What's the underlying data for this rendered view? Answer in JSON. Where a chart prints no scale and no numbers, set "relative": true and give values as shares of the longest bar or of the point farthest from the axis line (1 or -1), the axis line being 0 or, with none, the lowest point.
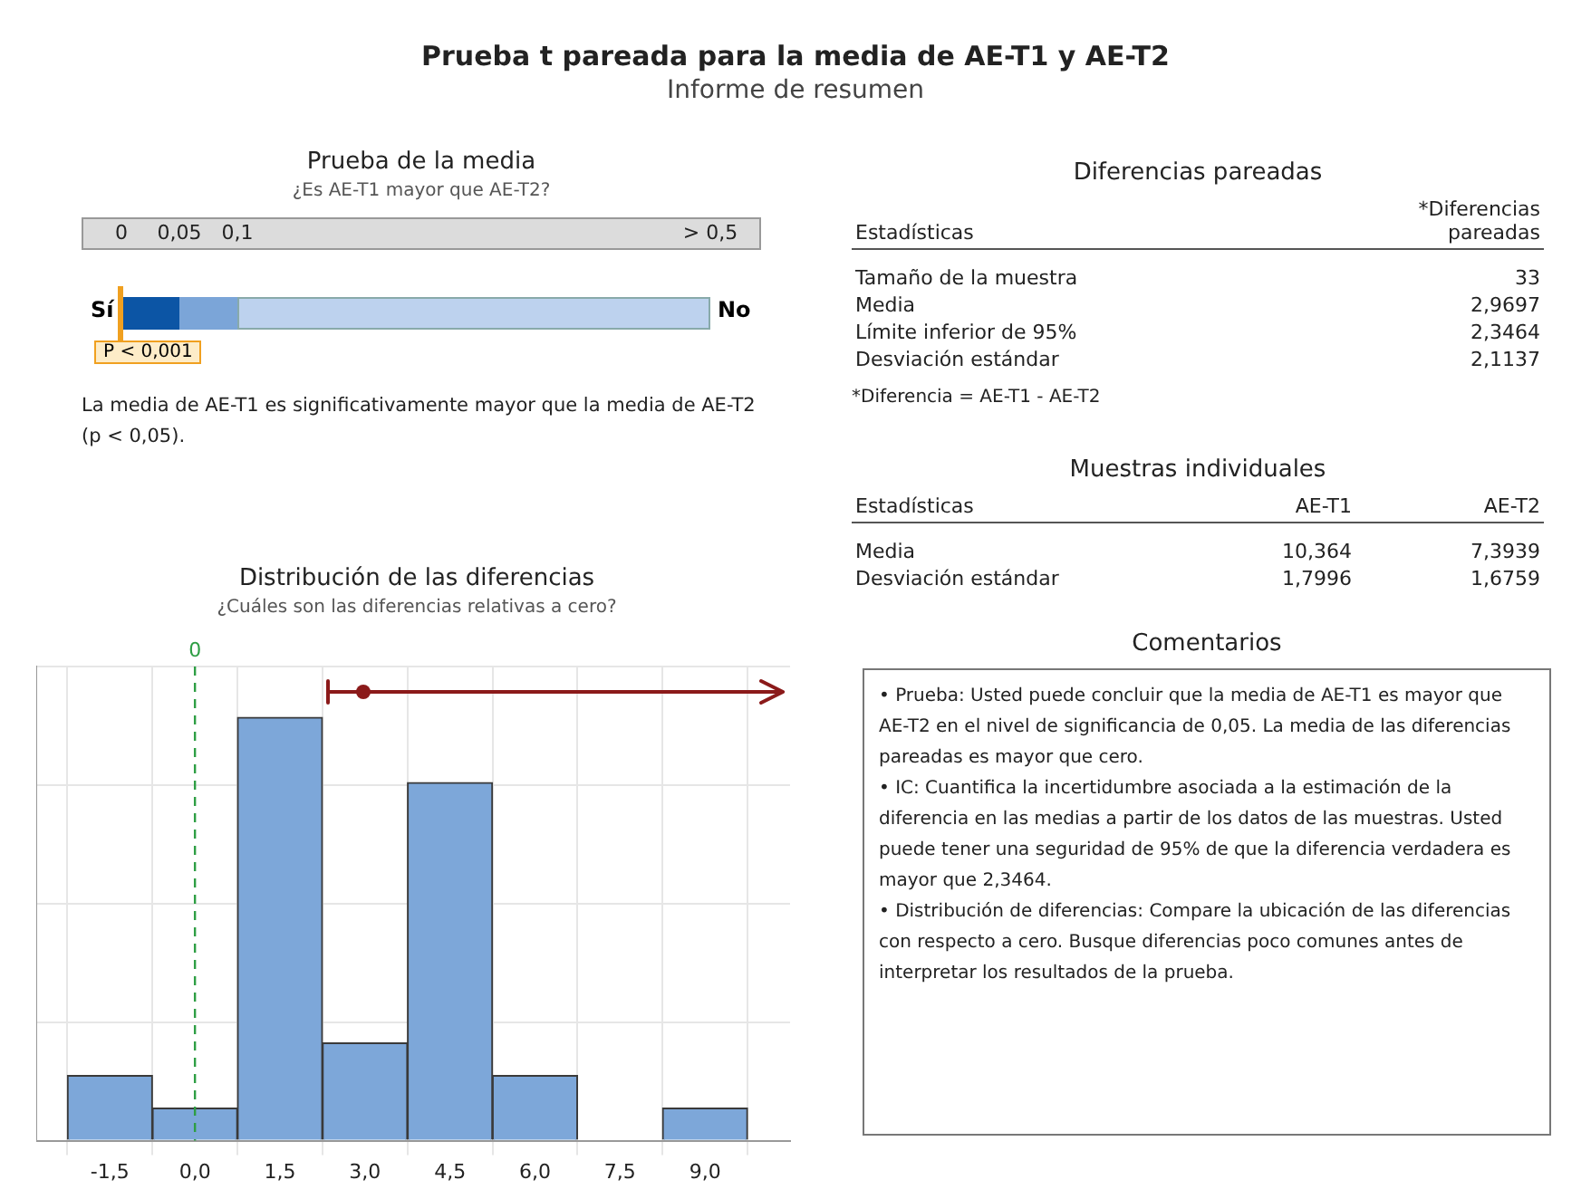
{
  "chart_data": [
    {
      "type": "other",
      "title": "Prueba t pareada para la media de AE-T1 y AE-T2",
      "subtitle": "Informe de resumen"
    },
    {
      "type": "other",
      "title": "Prueba de la media",
      "subtitle": "¿Es AE-T1 mayor que AE-T2?",
      "categories": [
        "0",
        "0,05",
        "0,1",
        "> 0,5"
      ],
      "annotations": [
        "Sí",
        "No",
        "P < 0,001",
        "La media de AE-T1 es significativamente mayor que la media de AE-T2 (p < 0,05)."
      ]
    },
    {
      "type": "bar",
      "title": "Distribución de las diferencias",
      "subtitle": "¿Cuáles son las diferencias relativas a cero?",
      "relative": true,
      "x": [
        -1.5,
        0,
        1.5,
        3,
        4.5,
        6,
        7.5,
        9
      ],
      "values": [
        0.154,
        0.077,
        1,
        0.231,
        0.846,
        0.154,
        0,
        0.077
      ],
      "color": "#7da7d9",
      "xlim": [
        -2.8,
        10.5
      ],
      "xticks": [
        {
          "value": -1.5,
          "label": "-1,5"
        },
        {
          "value": 0,
          "label": "0,0"
        },
        {
          "value": 1.5,
          "label": "1,5"
        },
        {
          "value": 3,
          "label": "3,0"
        },
        {
          "value": 4.5,
          "label": "4,5"
        },
        {
          "value": 6,
          "label": "6,0"
        },
        {
          "value": 7.5,
          "label": "7,5"
        },
        {
          "value": 9,
          "label": "9,0"
        }
      ],
      "ref_lines": [
        {
          "axis": "x",
          "value": 0,
          "label": "0",
          "color": "#2e9e44",
          "line_style": "dashed"
        }
      ],
      "grid": true,
      "legend": false
    },
    {
      "type": "other",
      "title": "Diferencias pareadas",
      "categories": [
        "Estadísticas",
        "*Diferencias pareadas"
      ],
      "y_categories": [
        "Tamaño de la muestra",
        "Media",
        "Límite inferior de 95%",
        "Desviación estándar"
      ],
      "cell_labels": [
        [
          "33"
        ],
        [
          "2,9697"
        ],
        [
          "2,3464"
        ],
        [
          "2,1137"
        ]
      ],
      "annotations": [
        "*Diferencia = AE-T1 - AE-T2"
      ]
    },
    {
      "type": "other",
      "title": "Muestras individuales",
      "categories": [
        "Estadísticas",
        "AE-T1",
        "AE-T2"
      ],
      "y_categories": [
        "Media",
        "Desviación estándar"
      ],
      "cell_labels": [
        [
          "10,364",
          "7,3939"
        ],
        [
          "1,7996",
          "1,6759"
        ]
      ]
    },
    {
      "type": "other",
      "title": "Comentarios",
      "annotations": [
        "• Prueba: Usted puede concluir que la media de AE-T1 es mayor que AE-T2 en el nivel de significancia de 0,05. La media de las diferencias pareadas es mayor que cero.",
        "• IC: Cuantifica la incertidumbre asociada a la estimación de la diferencia en las medias a partir de los datos de las muestras. Usted puede tener una seguridad de 95% de que la diferencia verdadera es mayor que 2,3464.",
        "• Distribución de diferencias: Compare la ubicación de las diferencias con respecto a cero. Busque diferencias poco comunes antes de interpretar los resultados de la prueba."
      ]
    }
  ]
}
